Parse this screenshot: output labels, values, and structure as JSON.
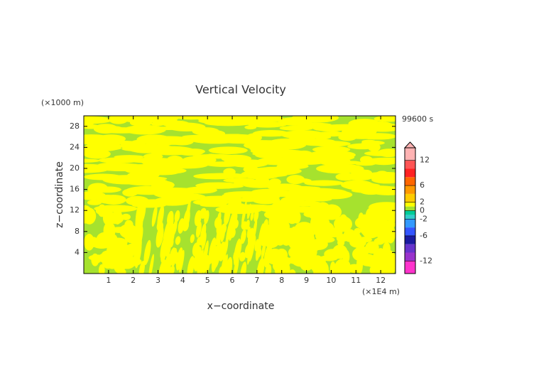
{
  "chart_data": {
    "type": "contour",
    "title": "Vertical Velocity",
    "x_label": "x−coordinate",
    "y_label": "z−coordinate",
    "x_unit": "(×1E4 m)",
    "y_unit": "(×1000 m)",
    "time_label": "99600 s",
    "xlim": [
      0,
      12.6
    ],
    "ylim": [
      0,
      30
    ],
    "xticks": [
      1,
      2,
      3,
      4,
      5,
      6,
      7,
      8,
      9,
      10,
      11,
      12
    ],
    "yticks": [
      4,
      8,
      12,
      16,
      20,
      24,
      28
    ],
    "colorbar": {
      "lim": [
        -15,
        15
      ],
      "ticks": [
        12,
        6,
        2,
        0,
        -2,
        -6,
        -12
      ],
      "levels": [
        -15,
        -12,
        -10,
        -8,
        -6,
        -4,
        -2,
        -1,
        0,
        1,
        2,
        4,
        6,
        8,
        10,
        12,
        15
      ],
      "colors": [
        "#ff33cc",
        "#9933cc",
        "#6633cc",
        "#1a1aa0",
        "#3355ff",
        "#3399ff",
        "#33cccc",
        "#00cc99",
        "#a6e22e",
        "#ffff00",
        "#ffcc00",
        "#ff9900",
        "#ff6600",
        "#ff2222",
        "#ff5555",
        "#ffb3b3"
      ]
    }
  }
}
